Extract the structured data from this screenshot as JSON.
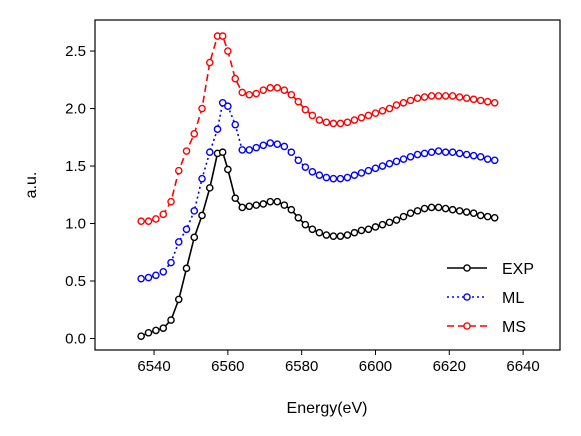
{
  "chart_data": {
    "type": "line",
    "title": "",
    "xlabel": "Energy(eV)",
    "ylabel": "a.u.",
    "xlim": [
      6524,
      6650
    ],
    "ylim": [
      -0.1,
      2.77
    ],
    "xticks": [
      6540,
      6560,
      6580,
      6600,
      6620,
      6640
    ],
    "yticks": [
      0.0,
      0.5,
      1.0,
      1.5,
      2.0,
      2.5
    ],
    "xtick_labels": [
      "6540",
      "6560",
      "6580",
      "6600",
      "6620",
      "6640"
    ],
    "ytick_labels": [
      "0.0",
      "0.5",
      "1.0",
      "1.5",
      "2.0",
      "2.5"
    ],
    "grid": false,
    "legend": "lower-right",
    "x": [
      6536.5,
      6538.5,
      6540.5,
      6542.5,
      6544.6,
      6546.7,
      6548.8,
      6550.9,
      6553,
      6555.1,
      6557.2,
      6558.6,
      6560,
      6562,
      6563.9,
      6565.8,
      6567.7,
      6569.6,
      6571.5,
      6573.4,
      6575.3,
      6577.2,
      6579.1,
      6581,
      6582.9,
      6584.8,
      6586.7,
      6588.6,
      6590.5,
      6592.4,
      6594.3,
      6596.2,
      6598.1,
      6600,
      6601.9,
      6603.8,
      6605.7,
      6607.6,
      6609.5,
      6611.4,
      6613.3,
      6615.2,
      6617.1,
      6619,
      6620.9,
      6622.8,
      6624.7,
      6626.6,
      6628.5,
      6630.4,
      6632.3
    ],
    "series": [
      {
        "name": "EXP",
        "color": "#000000",
        "dash": "solid",
        "values": [
          0.02,
          0.05,
          0.07,
          0.09,
          0.16,
          0.34,
          0.61,
          0.88,
          1.07,
          1.31,
          1.61,
          1.62,
          1.47,
          1.22,
          1.14,
          1.15,
          1.16,
          1.17,
          1.19,
          1.19,
          1.16,
          1.12,
          1.05,
          0.99,
          0.95,
          0.92,
          0.9,
          0.89,
          0.89,
          0.9,
          0.92,
          0.94,
          0.95,
          0.97,
          0.99,
          1.01,
          1.03,
          1.06,
          1.09,
          1.11,
          1.13,
          1.14,
          1.14,
          1.13,
          1.12,
          1.11,
          1.1,
          1.09,
          1.07,
          1.06,
          1.05
        ]
      },
      {
        "name": "ML",
        "color": "#0000ff",
        "dash": "dotted",
        "values": [
          0.52,
          0.53,
          0.55,
          0.58,
          0.66,
          0.84,
          0.95,
          1.11,
          1.39,
          1.62,
          1.82,
          2.05,
          2.02,
          1.86,
          1.64,
          1.64,
          1.66,
          1.68,
          1.7,
          1.69,
          1.67,
          1.62,
          1.55,
          1.49,
          1.45,
          1.42,
          1.4,
          1.39,
          1.39,
          1.4,
          1.42,
          1.44,
          1.46,
          1.48,
          1.5,
          1.52,
          1.54,
          1.56,
          1.58,
          1.6,
          1.61,
          1.62,
          1.63,
          1.62,
          1.62,
          1.61,
          1.6,
          1.59,
          1.58,
          1.56,
          1.55
        ]
      },
      {
        "name": "MS",
        "color": "#ff0000",
        "dash": "dashed",
        "values": [
          1.02,
          1.02,
          1.04,
          1.08,
          1.19,
          1.46,
          1.63,
          1.78,
          2.0,
          2.4,
          2.63,
          2.63,
          2.5,
          2.26,
          2.14,
          2.12,
          2.13,
          2.16,
          2.18,
          2.18,
          2.16,
          2.12,
          2.06,
          1.99,
          1.94,
          1.9,
          1.88,
          1.87,
          1.87,
          1.88,
          1.9,
          1.92,
          1.94,
          1.96,
          1.98,
          2.0,
          2.03,
          2.05,
          2.07,
          2.09,
          2.1,
          2.11,
          2.11,
          2.11,
          2.11,
          2.1,
          2.09,
          2.08,
          2.07,
          2.06,
          2.05
        ]
      }
    ]
  }
}
